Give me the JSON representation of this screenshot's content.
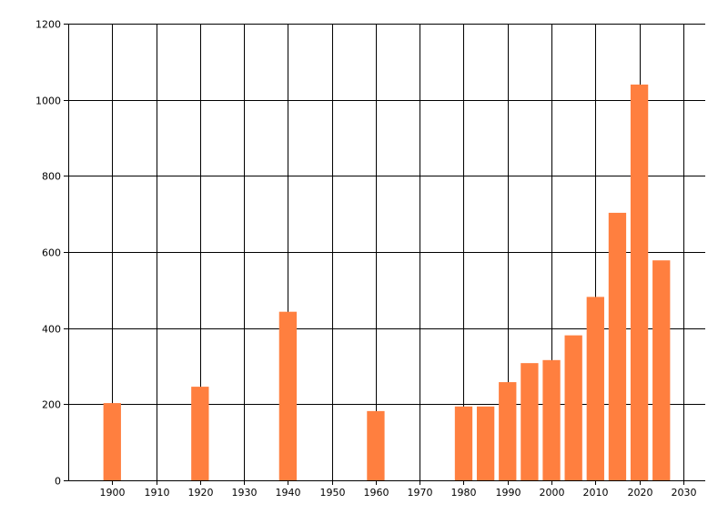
{
  "chart_data": {
    "type": "bar",
    "title": "",
    "xlabel": "",
    "ylabel": "",
    "x": [
      1900,
      1920,
      1940,
      1960,
      1980,
      1985,
      1990,
      1995,
      2000,
      2005,
      2010,
      2015,
      2020,
      2025
    ],
    "values": [
      203,
      246,
      443,
      182,
      194,
      194,
      258,
      308,
      316,
      381,
      482,
      703,
      1040,
      578
    ],
    "xlim": [
      1890,
      2035
    ],
    "ylim": [
      0,
      1200
    ],
    "bar_width_years": 4,
    "x_ticks": [
      1900,
      1910,
      1920,
      1930,
      1940,
      1950,
      1960,
      1970,
      1980,
      1990,
      2000,
      2010,
      2020,
      2030
    ],
    "y_ticks": [
      0,
      200,
      400,
      600,
      800,
      1000,
      1200
    ],
    "x_tick_labels": [
      "1900",
      "1910",
      "1920",
      "1930",
      "1940",
      "1950",
      "1960",
      "1970",
      "1980",
      "1990",
      "2000",
      "2010",
      "2020",
      "2030"
    ],
    "y_tick_labels": [
      "0",
      "200",
      "400",
      "600",
      "800",
      "1000",
      "1200"
    ],
    "grid": true,
    "legend": "none",
    "colors": {
      "bar": "#ff7f3f",
      "grid": "#000000",
      "axis": "#000000",
      "background": "#ffffff"
    }
  }
}
